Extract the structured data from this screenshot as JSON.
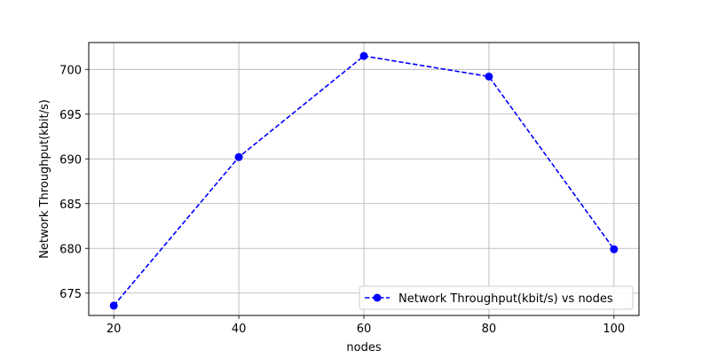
{
  "chart_data": {
    "type": "line",
    "title": "",
    "xlabel": "nodes",
    "ylabel": "Network Throughput(kbit/s)",
    "x": [
      20,
      40,
      60,
      80,
      100
    ],
    "series": [
      {
        "name": "Network Throughput(kbit/s) vs nodes",
        "values": [
          673.6,
          690.2,
          701.5,
          699.2,
          679.9
        ],
        "color": "#0000ff",
        "line_style": "dashed",
        "marker": "circle"
      }
    ],
    "xlim": [
      16,
      104
    ],
    "ylim": [
      672.5,
      703.0
    ],
    "xticks": [
      20,
      40,
      60,
      80,
      100
    ],
    "yticks": [
      675,
      680,
      685,
      690,
      695,
      700
    ],
    "grid": true,
    "legend_position": "bottom-right"
  }
}
